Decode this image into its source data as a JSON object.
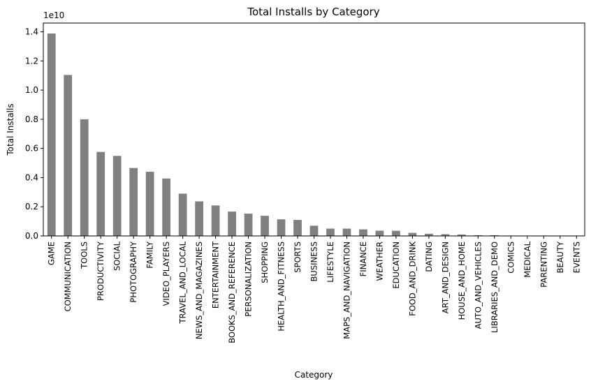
{
  "chart_data": {
    "type": "bar",
    "title": "Total Installs by Category",
    "xlabel": "Category",
    "ylabel": "Total Installs",
    "offset_label": "1e10",
    "ylim": [
      0,
      1.46
    ],
    "yticks": [
      "0.0",
      "0.2",
      "0.4",
      "0.6",
      "0.8",
      "1.0",
      "1.2",
      "1.4"
    ],
    "grid": false,
    "bar_color": "#808080",
    "categories": [
      "GAME",
      "COMMUNICATION",
      "TOOLS",
      "PRODUCTIVITY",
      "SOCIAL",
      "PHOTOGRAPHY",
      "FAMILY",
      "VIDEO_PLAYERS",
      "TRAVEL_AND_LOCAL",
      "NEWS_AND_MAGAZINES",
      "ENTERTAINMENT",
      "BOOKS_AND_REFERENCE",
      "PERSONALIZATION",
      "SHOPPING",
      "HEALTH_AND_FITNESS",
      "SPORTS",
      "BUSINESS",
      "LIFESTYLE",
      "MAPS_AND_NAVIGATION",
      "FINANCE",
      "WEATHER",
      "EDUCATION",
      "FOOD_AND_DRINK",
      "DATING",
      "ART_AND_DESIGN",
      "HOUSE_AND_HOME",
      "AUTO_AND_VEHICLES",
      "LIBRARIES_AND_DEMO",
      "COMICS",
      "MEDICAL",
      "PARENTING",
      "BEAUTY",
      "EVENTS"
    ],
    "values": [
      1.388,
      1.104,
      0.8,
      0.576,
      0.549,
      0.466,
      0.44,
      0.394,
      0.29,
      0.237,
      0.209,
      0.167,
      0.153,
      0.138,
      0.114,
      0.11,
      0.07,
      0.05,
      0.05,
      0.045,
      0.036,
      0.035,
      0.021,
      0.015,
      0.012,
      0.01,
      0.005,
      0.005,
      0.002,
      0.002,
      0.001,
      0.001,
      0.001
    ]
  }
}
